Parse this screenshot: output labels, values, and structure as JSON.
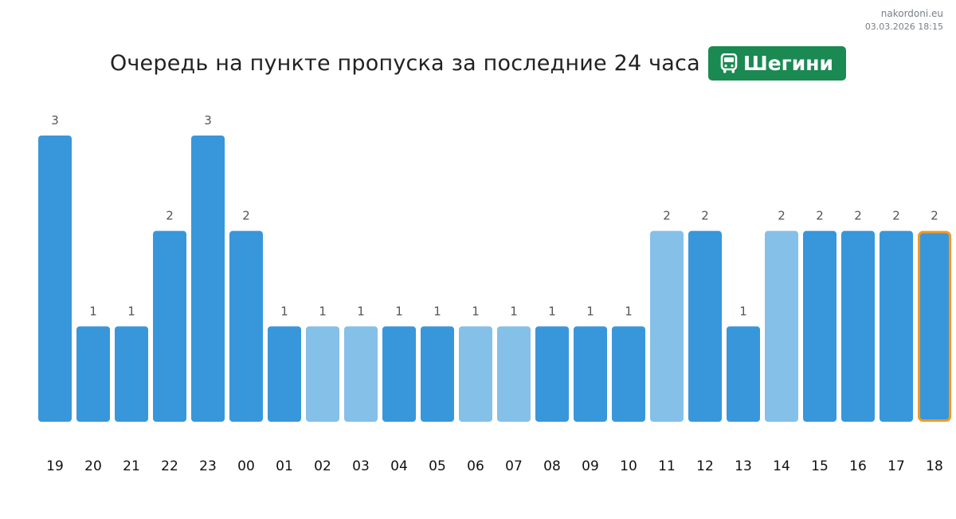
{
  "site": {
    "name": "nakordoni.eu",
    "timestamp": "03.03.2026 18:15"
  },
  "header": {
    "title": "Очередь на пункте пропуска за последние 24 часа",
    "badge_icon": "bus-icon",
    "badge_label": "Шегини"
  },
  "colors": {
    "bar_dark": "#3897db",
    "bar_light": "#85c0e8",
    "highlight_border": "#f29a1f",
    "badge_bg": "#1a8a52"
  },
  "chart_data": {
    "type": "bar",
    "title": "Очередь на пункте пропуска за последние 24 часа",
    "xlabel": "",
    "ylabel": "",
    "categories": [
      "19",
      "20",
      "21",
      "22",
      "23",
      "00",
      "01",
      "02",
      "03",
      "04",
      "05",
      "06",
      "07",
      "08",
      "09",
      "10",
      "11",
      "12",
      "13",
      "14",
      "15",
      "16",
      "17",
      "18"
    ],
    "values": [
      3,
      1,
      1,
      2,
      3,
      2,
      1,
      1,
      1,
      1,
      1,
      1,
      1,
      1,
      1,
      1,
      2,
      2,
      1,
      2,
      2,
      2,
      2,
      2
    ],
    "shade": [
      "dark",
      "dark",
      "dark",
      "dark",
      "dark",
      "dark",
      "dark",
      "light",
      "light",
      "dark",
      "dark",
      "light",
      "light",
      "dark",
      "dark",
      "dark",
      "light",
      "dark",
      "dark",
      "light",
      "dark",
      "dark",
      "dark",
      "dark"
    ],
    "highlight_category": "18",
    "ylim": [
      0,
      3
    ],
    "grid": false,
    "legend": "none",
    "data_labels": true
  }
}
